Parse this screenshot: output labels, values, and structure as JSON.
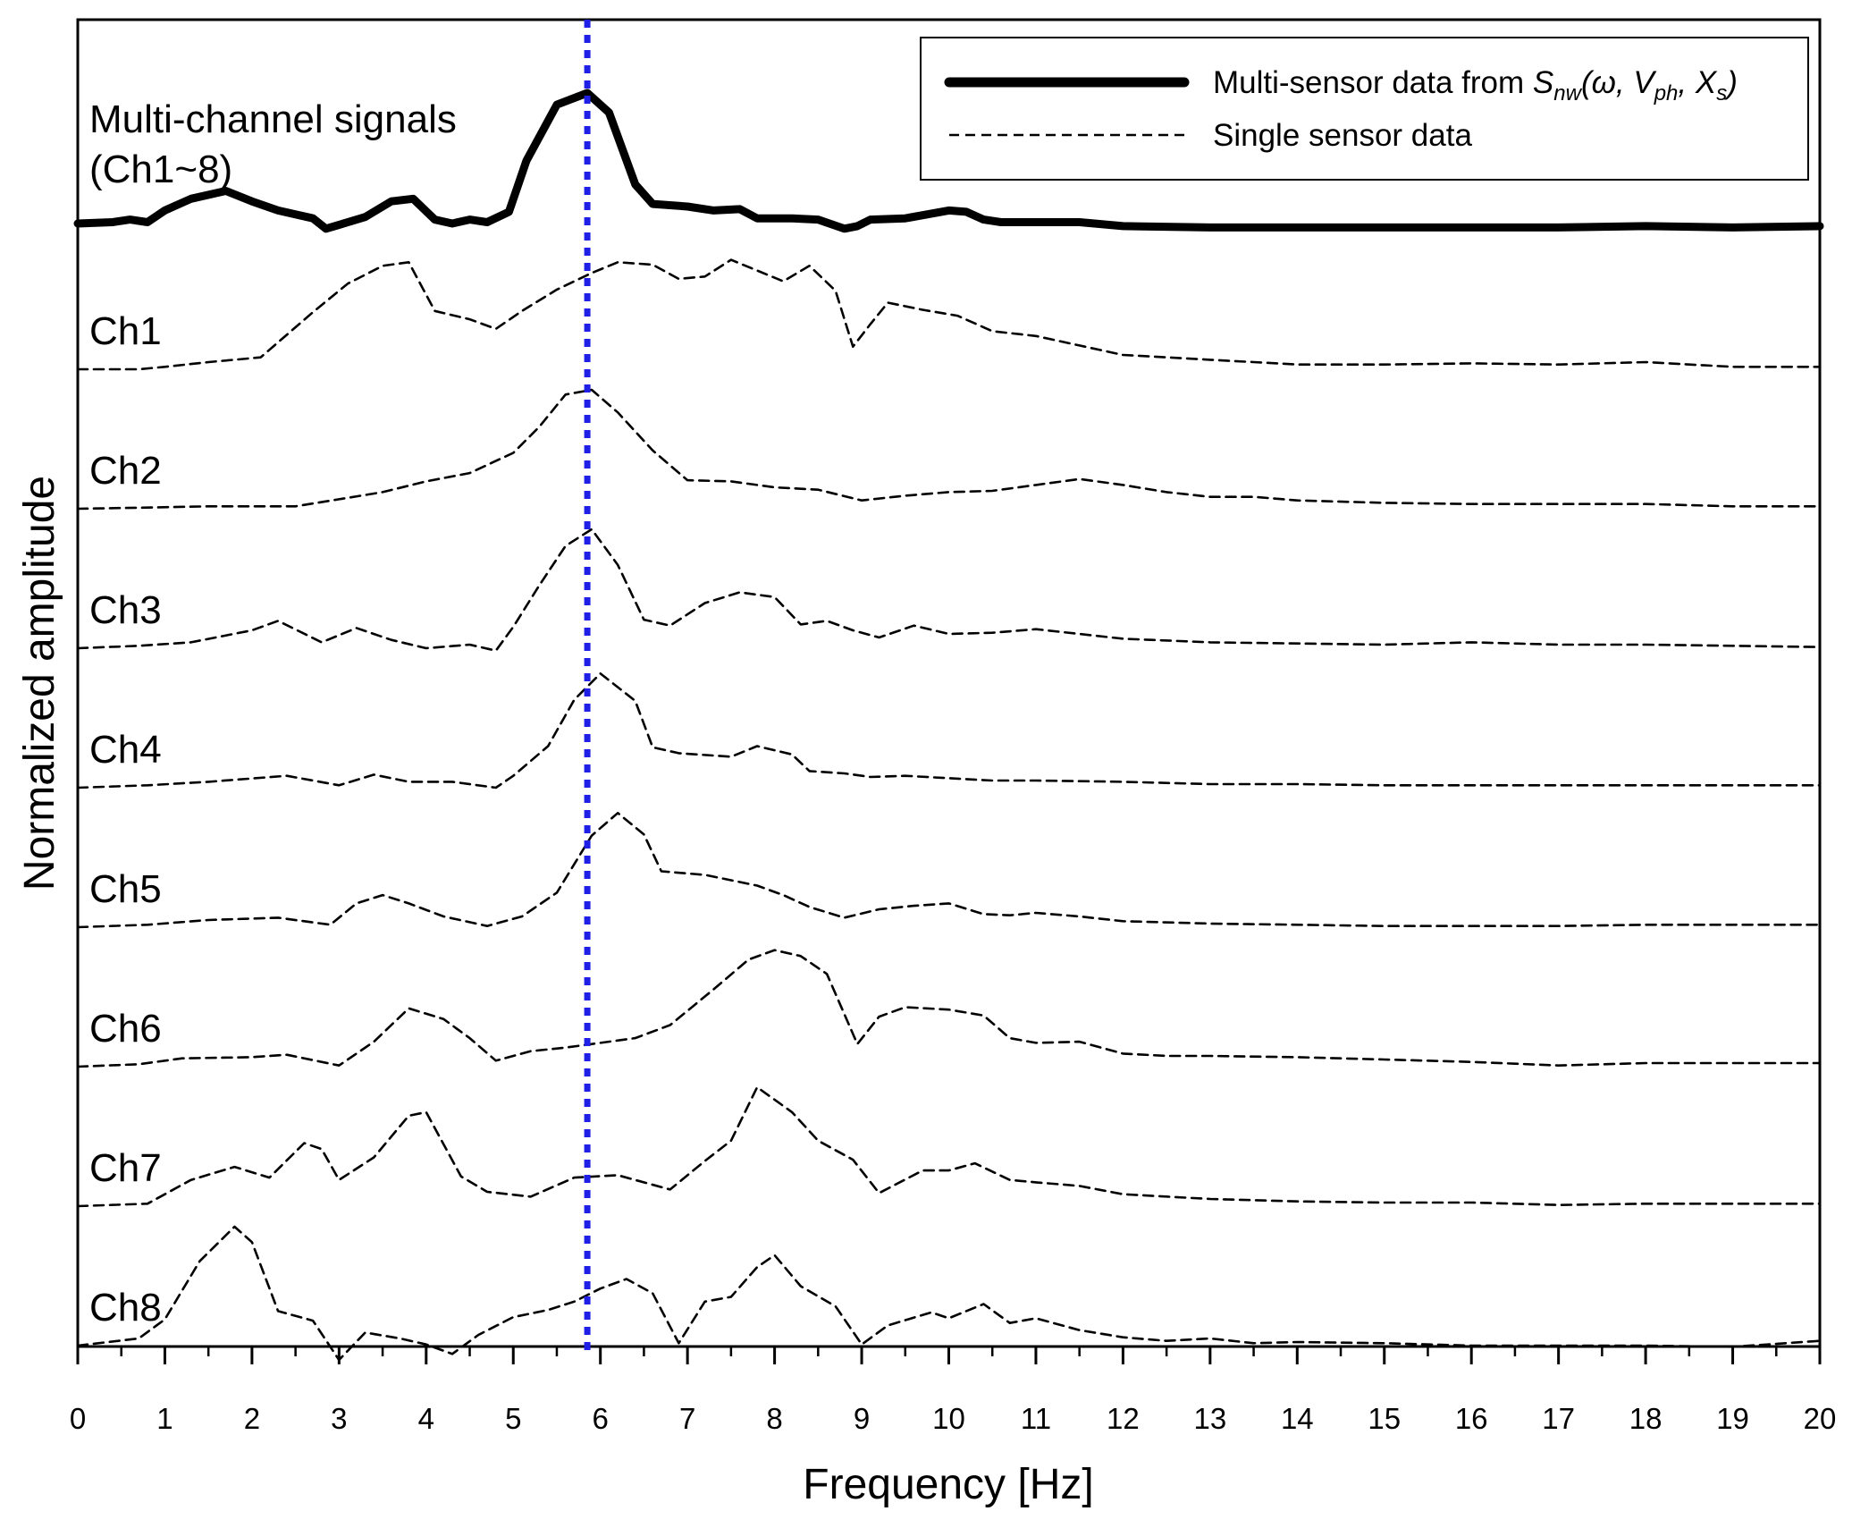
{
  "chart_data": {
    "type": "line",
    "xlabel": "Frequency [Hz]",
    "ylabel": "Normalized amplitude",
    "xlim": [
      0,
      20
    ],
    "x_ticks": [
      "0",
      "1",
      "2",
      "3",
      "4",
      "5",
      "6",
      "7",
      "8",
      "9",
      "10",
      "11",
      "12",
      "13",
      "14",
      "15",
      "16",
      "17",
      "18",
      "19",
      "20"
    ],
    "grid": false,
    "legend": {
      "position": "top-right",
      "entries": [
        {
          "label_prefix": "Multi-sensor data from ",
          "func_S": "S",
          "func_S_sub": "nw",
          "func_open": "(ω, ",
          "func_V": "V",
          "func_V_sub": "ph",
          "func_sep": ", ",
          "func_X": "X",
          "func_X_sub": "s",
          "func_close": ")",
          "style": "solid-thick"
        },
        {
          "label": "Single sensor data",
          "style": "dashed"
        }
      ]
    },
    "marker_line": {
      "x": 5.85,
      "style": "dotted",
      "color": "#1f1fe6"
    },
    "colors": {
      "multi": "#000000",
      "single": "#000000",
      "marker": "#1f1fe6"
    },
    "multi_label_line1": "Multi-channel signals",
    "multi_label_line2": "(Ch1~8)",
    "multi_series": {
      "name": "Multi-sensor data",
      "x": [
        0,
        0.4,
        0.6,
        0.8,
        1.0,
        1.3,
        1.7,
        2.0,
        2.3,
        2.7,
        2.85,
        3.0,
        3.3,
        3.6,
        3.85,
        4.1,
        4.3,
        4.5,
        4.7,
        4.95,
        5.15,
        5.5,
        5.85,
        6.1,
        6.4,
        6.6,
        7.0,
        7.3,
        7.6,
        7.8,
        8.2,
        8.5,
        8.8,
        8.95,
        9.1,
        9.5,
        10.0,
        10.2,
        10.4,
        10.6,
        11.0,
        11.5,
        12.0,
        13.0,
        14.0,
        15.0,
        16.0,
        17.0,
        18.0,
        19.0,
        20.0
      ],
      "y": [
        0,
        0.01,
        0.03,
        0.01,
        0.1,
        0.19,
        0.25,
        0.17,
        0.1,
        0.04,
        -0.04,
        -0.01,
        0.05,
        0.17,
        0.19,
        0.03,
        0,
        0.03,
        0.01,
        0.09,
        0.48,
        0.91,
        1.0,
        0.85,
        0.3,
        0.15,
        0.13,
        0.1,
        0.11,
        0.04,
        0.04,
        0.03,
        -0.04,
        -0.02,
        0.03,
        0.04,
        0.1,
        0.09,
        0.03,
        0.01,
        0.01,
        0.01,
        -0.02,
        -0.03,
        -0.03,
        -0.03,
        -0.03,
        -0.03,
        -0.02,
        -0.03,
        -0.02
      ]
    },
    "series": [
      {
        "name": "Ch1",
        "x": [
          0,
          0.7,
          1.0,
          1.5,
          2.1,
          2.7,
          3.1,
          3.5,
          3.8,
          4.1,
          4.5,
          4.8,
          5.1,
          5.5,
          5.9,
          6.2,
          6.6,
          6.9,
          7.2,
          7.5,
          7.8,
          8.1,
          8.4,
          8.7,
          8.9,
          9.1,
          9.3,
          9.7,
          10.1,
          10.5,
          11.0,
          11.5,
          12.0,
          12.5,
          13.0,
          13.5,
          14.0,
          15.0,
          16.0,
          17.0,
          18.0,
          19.0,
          20.0
        ],
        "y": [
          0,
          0,
          0.02,
          0.06,
          0.1,
          0.48,
          0.72,
          0.87,
          0.9,
          0.49,
          0.42,
          0.34,
          0.49,
          0.67,
          0.81,
          0.9,
          0.88,
          0.76,
          0.78,
          0.92,
          0.83,
          0.74,
          0.87,
          0.66,
          0.19,
          0.38,
          0.56,
          0.5,
          0.45,
          0.32,
          0.28,
          0.2,
          0.12,
          0.1,
          0.08,
          0.06,
          0.04,
          0.04,
          0.05,
          0.04,
          0.06,
          0.02,
          0.02
        ]
      },
      {
        "name": "Ch2",
        "x": [
          0,
          0.8,
          1.5,
          2.5,
          3.0,
          3.5,
          4.0,
          4.5,
          5.0,
          5.3,
          5.6,
          5.9,
          6.2,
          6.6,
          7.0,
          7.5,
          8.0,
          8.5,
          9.0,
          9.5,
          10.0,
          10.5,
          11.0,
          11.5,
          12.0,
          12.5,
          13.0,
          13.5,
          14.0,
          15.0,
          16.0,
          17.0,
          18.0,
          19.0,
          20.0
        ],
        "y": [
          0,
          0.01,
          0.02,
          0.02,
          0.08,
          0.14,
          0.23,
          0.3,
          0.47,
          0.69,
          0.96,
          1.0,
          0.81,
          0.49,
          0.24,
          0.23,
          0.18,
          0.16,
          0.07,
          0.11,
          0.14,
          0.15,
          0.2,
          0.25,
          0.2,
          0.14,
          0.1,
          0.1,
          0.07,
          0.05,
          0.04,
          0.04,
          0.04,
          0.02,
          0.02
        ]
      },
      {
        "name": "Ch3",
        "x": [
          0,
          0.7,
          1.3,
          2.0,
          2.3,
          2.8,
          3.2,
          3.6,
          4.0,
          4.5,
          4.8,
          5.0,
          5.3,
          5.6,
          5.9,
          6.2,
          6.5,
          6.8,
          7.2,
          7.6,
          8.0,
          8.3,
          8.6,
          8.9,
          9.2,
          9.6,
          10.0,
          10.5,
          11.0,
          12.0,
          13.0,
          14.0,
          15.0,
          16.0,
          17.0,
          18.0,
          19.0,
          20.0
        ],
        "y": [
          0,
          0.02,
          0.05,
          0.15,
          0.23,
          0.05,
          0.17,
          0.07,
          0,
          0.03,
          -0.02,
          0.18,
          0.53,
          0.86,
          1.0,
          0.7,
          0.24,
          0.19,
          0.38,
          0.47,
          0.43,
          0.2,
          0.23,
          0.15,
          0.09,
          0.19,
          0.12,
          0.13,
          0.16,
          0.08,
          0.05,
          0.04,
          0.03,
          0.05,
          0.03,
          0.03,
          0.02,
          0.01
        ]
      },
      {
        "name": "Ch4",
        "x": [
          0,
          0.8,
          1.5,
          2.4,
          3.0,
          3.4,
          3.8,
          4.3,
          4.8,
          5.0,
          5.4,
          5.7,
          6.0,
          6.4,
          6.6,
          6.9,
          7.5,
          7.8,
          8.2,
          8.4,
          8.8,
          9.1,
          9.5,
          10.0,
          10.5,
          11.0,
          12.0,
          13.0,
          14.0,
          15.0,
          16.0,
          17.0,
          18.0,
          19.0,
          20.0
        ],
        "y": [
          0,
          0.02,
          0.05,
          0.1,
          0.02,
          0.11,
          0.05,
          0.05,
          0,
          0.1,
          0.35,
          0.74,
          0.96,
          0.73,
          0.34,
          0.29,
          0.26,
          0.35,
          0.28,
          0.14,
          0.12,
          0.09,
          0.1,
          0.08,
          0.06,
          0.06,
          0.05,
          0.03,
          0.03,
          0.02,
          0.02,
          0.02,
          0.02,
          0.02,
          0.02
        ]
      },
      {
        "name": "Ch5",
        "x": [
          0,
          0.8,
          1.5,
          2.3,
          2.9,
          3.2,
          3.5,
          3.8,
          4.2,
          4.7,
          5.1,
          5.5,
          5.9,
          6.2,
          6.5,
          6.7,
          7.2,
          7.8,
          8.1,
          8.4,
          8.8,
          9.2,
          9.6,
          10.0,
          10.4,
          10.7,
          11.0,
          11.5,
          12.0,
          13.0,
          14.0,
          15.0,
          16.0,
          17.0,
          18.0,
          19.0,
          20.0
        ],
        "y": [
          0,
          0.02,
          0.06,
          0.08,
          0.02,
          0.2,
          0.27,
          0.2,
          0.09,
          0.01,
          0.09,
          0.29,
          0.77,
          0.96,
          0.78,
          0.47,
          0.44,
          0.35,
          0.27,
          0.17,
          0.08,
          0.15,
          0.18,
          0.2,
          0.11,
          0.1,
          0.12,
          0.09,
          0.05,
          0.03,
          0.02,
          0.01,
          0.01,
          0.01,
          0.02,
          0.02,
          0.02
        ]
      },
      {
        "name": "Ch6",
        "x": [
          0,
          0.7,
          1.2,
          2.0,
          2.4,
          3.0,
          3.4,
          3.8,
          4.2,
          4.5,
          4.8,
          5.2,
          5.6,
          6.0,
          6.4,
          6.8,
          7.3,
          7.7,
          8.0,
          8.3,
          8.6,
          8.95,
          9.2,
          9.5,
          10.0,
          10.4,
          10.7,
          11.0,
          11.5,
          12.0,
          12.5,
          13.0,
          14.0,
          15.0,
          16.0,
          17.0,
          18.0,
          19.0,
          20.0
        ],
        "y": [
          0,
          0.02,
          0.07,
          0.08,
          0.1,
          0.01,
          0.21,
          0.49,
          0.4,
          0.24,
          0.05,
          0.13,
          0.16,
          0.2,
          0.24,
          0.35,
          0.65,
          0.9,
          0.98,
          0.93,
          0.78,
          0.19,
          0.42,
          0.5,
          0.48,
          0.43,
          0.24,
          0.2,
          0.21,
          0.11,
          0.09,
          0.09,
          0.08,
          0.06,
          0.04,
          0.01,
          0.03,
          0.03,
          0.03
        ]
      },
      {
        "name": "Ch7",
        "x": [
          0,
          0.8,
          1.3,
          1.8,
          2.2,
          2.6,
          2.8,
          3.0,
          3.4,
          3.8,
          4.0,
          4.4,
          4.7,
          5.2,
          5.7,
          6.2,
          6.8,
          7.2,
          7.5,
          7.8,
          8.2,
          8.5,
          8.9,
          9.2,
          9.7,
          10.0,
          10.3,
          10.7,
          11.0,
          11.5,
          12.0,
          13.0,
          14.0,
          15.0,
          16.0,
          17.0,
          18.0,
          19.0,
          20.0
        ],
        "y": [
          0,
          0.02,
          0.22,
          0.33,
          0.24,
          0.53,
          0.48,
          0.22,
          0.41,
          0.76,
          0.79,
          0.25,
          0.12,
          0.08,
          0.24,
          0.26,
          0.14,
          0.38,
          0.55,
          1.0,
          0.79,
          0.55,
          0.39,
          0.11,
          0.3,
          0.3,
          0.36,
          0.22,
          0.2,
          0.17,
          0.1,
          0.06,
          0.04,
          0.03,
          0.03,
          0.01,
          0.02,
          0.02,
          0.02
        ]
      },
      {
        "name": "Ch8",
        "x": [
          0,
          0.7,
          1.0,
          1.4,
          1.8,
          2.0,
          2.3,
          2.7,
          3.0,
          3.3,
          3.7,
          4.0,
          4.3,
          4.6,
          5.0,
          5.4,
          5.7,
          6.0,
          6.3,
          6.6,
          6.9,
          7.2,
          7.5,
          7.8,
          8.0,
          8.3,
          8.7,
          9.0,
          9.3,
          9.8,
          10.0,
          10.4,
          10.7,
          11.0,
          11.5,
          12.0,
          12.5,
          13.0,
          13.5,
          14.0,
          15.0,
          16.0,
          17.0,
          18.0,
          19.0,
          20.0
        ],
        "y": [
          0,
          0.06,
          0.22,
          0.71,
          1.0,
          0.87,
          0.29,
          0.21,
          -0.12,
          0.11,
          0.06,
          0.01,
          -0.07,
          0.09,
          0.24,
          0.3,
          0.37,
          0.48,
          0.56,
          0.44,
          0.02,
          0.37,
          0.41,
          0.66,
          0.76,
          0.5,
          0.33,
          0.01,
          0.17,
          0.28,
          0.23,
          0.35,
          0.19,
          0.23,
          0.13,
          0.07,
          0.04,
          0.06,
          0.02,
          0.03,
          0.02,
          0.0,
          0.0,
          0.0,
          -0.01,
          0.04
        ]
      }
    ]
  }
}
